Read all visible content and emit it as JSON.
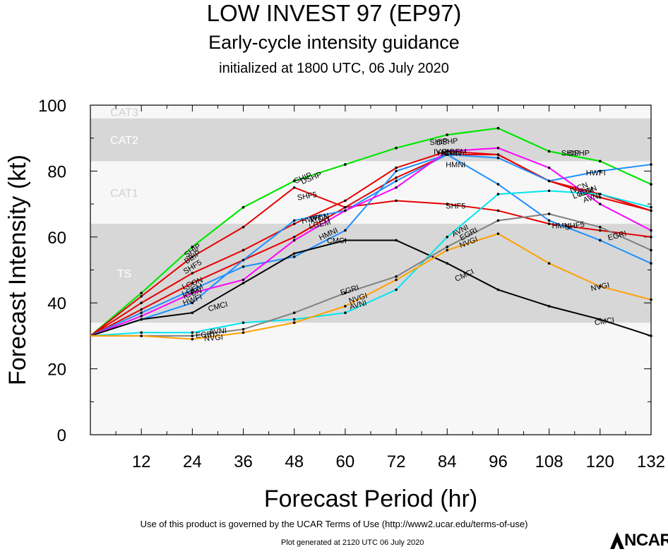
{
  "header": {
    "title": "LOW INVEST 97 (EP97)",
    "subtitle": "Early-cycle intensity guidance",
    "initialized": "initialized at 1800 UTC, 06 July 2020"
  },
  "footer": {
    "terms": "Use of this product is governed by the UCAR Terms of Use (http://www2.ucar.edu/terms-of-use)",
    "generated": "Plot generated at 2120 UTC   06 July 2020",
    "logo_text": "NCAR"
  },
  "chart_data": {
    "type": "line",
    "xlabel": "Forecast Period (hr)",
    "ylabel": "Forecast Intensity (kt)",
    "xlim": [
      0,
      132
    ],
    "ylim": [
      0,
      100
    ],
    "xticks": [
      12,
      24,
      36,
      48,
      60,
      72,
      84,
      96,
      108,
      120,
      132
    ],
    "yticks": [
      0,
      20,
      40,
      60,
      80,
      100
    ],
    "bands": [
      {
        "label": "TS",
        "from": 34,
        "to": 64,
        "color": "#d7d7d7"
      },
      {
        "label": "CAT1",
        "from": 64,
        "to": 83,
        "color": "#f7f7f7"
      },
      {
        "label": "CAT2",
        "from": 83,
        "to": 96,
        "color": "#d7d7d7"
      },
      {
        "label": "CAT3",
        "from": 96,
        "to": 100,
        "color": "#f7f7f7"
      }
    ],
    "below_band_color": "#f7f7f7",
    "series": [
      {
        "name": "SHIP",
        "color": "#00e600",
        "x": [
          0,
          12,
          24,
          36,
          48,
          60,
          72,
          84,
          96,
          108,
          120,
          132
        ],
        "y": [
          30,
          43,
          57,
          69,
          77,
          82,
          87,
          91,
          93,
          86,
          83,
          76
        ]
      },
      {
        "name": "DSHP",
        "color": "#00e600",
        "x": [
          0,
          12,
          24,
          36,
          48,
          60,
          72,
          84,
          96,
          108,
          120,
          132
        ],
        "y": [
          30,
          43,
          57,
          69,
          77,
          82,
          87,
          91,
          93,
          86,
          83,
          76
        ]
      },
      {
        "name": "SHF5",
        "color": "#e60000",
        "x": [
          0,
          12,
          24,
          36,
          48,
          60,
          72,
          84,
          96,
          108,
          120,
          132
        ],
        "y": [
          30,
          42,
          54,
          63,
          75,
          69,
          71,
          70,
          68,
          64,
          62,
          60
        ]
      },
      {
        "name": "LGEM",
        "color": "#e60000",
        "x": [
          0,
          12,
          24,
          36,
          48,
          60,
          72,
          84,
          96,
          108,
          120,
          132
        ],
        "y": [
          30,
          40,
          49,
          56,
          64,
          71,
          81,
          86,
          85,
          77,
          73,
          68
        ]
      },
      {
        "name": "IVCN",
        "color": "#e60000",
        "x": [
          0,
          12,
          24,
          36,
          48,
          60,
          72,
          84,
          96,
          108,
          120,
          132
        ],
        "y": [
          30,
          38,
          46,
          53,
          60,
          69,
          78,
          85,
          85,
          77,
          72,
          68
        ]
      },
      {
        "name": "HWFI",
        "color": "#1e90ff",
        "x": [
          0,
          12,
          24,
          36,
          48,
          60,
          72,
          84,
          96,
          108,
          120,
          132
        ],
        "y": [
          30,
          37,
          44,
          51,
          54,
          62,
          80,
          85,
          76,
          65,
          59,
          52
        ]
      },
      {
        "name": "HMNI",
        "color": "#1e90ff",
        "x": [
          0,
          12,
          24,
          36,
          48,
          60,
          72,
          84,
          96,
          108,
          120,
          132
        ],
        "y": [
          30,
          35,
          40,
          53,
          65,
          68,
          77,
          85,
          84,
          77,
          80,
          82
        ]
      },
      {
        "name": "ICON",
        "color": "#ff00ff",
        "x": [
          0,
          12,
          24,
          36,
          48,
          60,
          72,
          84,
          96,
          108,
          120,
          132
        ],
        "y": [
          30,
          36,
          43,
          47,
          59,
          68,
          75,
          86,
          87,
          81,
          70,
          62
        ]
      },
      {
        "name": "CMCI",
        "color": "#000000",
        "x": [
          0,
          12,
          24,
          36,
          48,
          60,
          72,
          84,
          96,
          108,
          120,
          132
        ],
        "y": [
          30,
          35,
          37,
          46,
          55,
          59,
          59,
          52,
          44,
          39,
          35,
          30
        ]
      },
      {
        "name": "AVNI",
        "color": "#00e5ee",
        "x": [
          0,
          12,
          24,
          36,
          48,
          60,
          72,
          84,
          96,
          108,
          120,
          132
        ],
        "y": [
          30,
          31,
          31,
          34,
          35,
          37,
          44,
          60,
          73,
          74,
          73,
          69
        ]
      },
      {
        "name": "EGRI",
        "color": "#808080",
        "x": [
          0,
          12,
          24,
          36,
          48,
          60,
          72,
          84,
          96,
          108,
          120,
          132
        ],
        "y": [
          30,
          30,
          30,
          32,
          37,
          43,
          48,
          57,
          65,
          67,
          63,
          56
        ]
      },
      {
        "name": "NVGI",
        "color": "#ffa000",
        "x": [
          0,
          12,
          24,
          36,
          48,
          60,
          72,
          84,
          96,
          108,
          120,
          132
        ],
        "y": [
          30,
          30,
          29,
          31,
          34,
          39,
          47,
          56,
          61,
          52,
          45,
          41
        ]
      }
    ],
    "annotations": [
      {
        "text": "BEIP",
        "x": 24,
        "y": 54,
        "angle": -35
      },
      {
        "text": "SHIP",
        "x": 24,
        "y": 56,
        "angle": -35
      },
      {
        "text": "SHF5",
        "x": 24,
        "y": 51,
        "angle": -32
      },
      {
        "text": "LCON",
        "x": 24,
        "y": 46,
        "angle": -22
      },
      {
        "text": "LGEM",
        "x": 24,
        "y": 44,
        "angle": -22
      },
      {
        "text": "ICON",
        "x": 24,
        "y": 43,
        "angle": -20
      },
      {
        "text": "HWFI",
        "x": 24,
        "y": 41,
        "angle": -20
      },
      {
        "text": "CMCI",
        "x": 30,
        "y": 39,
        "angle": -15
      },
      {
        "text": "AVNI",
        "x": 30,
        "y": 31.5,
        "angle": -5
      },
      {
        "text": "EGRI",
        "x": 27,
        "y": 30.5,
        "angle": -5
      },
      {
        "text": "NVGI",
        "x": 29,
        "y": 29.5,
        "angle": -5
      },
      {
        "text": "SHIP",
        "x": 50,
        "y": 78,
        "angle": -22
      },
      {
        "text": "DSHP",
        "x": 52,
        "y": 78,
        "angle": -22
      },
      {
        "text": "SHF5",
        "x": 51,
        "y": 72.5,
        "angle": -10
      },
      {
        "text": "IVCN",
        "x": 54,
        "y": 66,
        "angle": -12
      },
      {
        "text": "ICON",
        "x": 54,
        "y": 65.5,
        "angle": -12
      },
      {
        "text": "HWFI",
        "x": 52,
        "y": 65.5,
        "angle": -12
      },
      {
        "text": "LGEM",
        "x": 54,
        "y": 64,
        "angle": -12
      },
      {
        "text": "HMNI",
        "x": 56,
        "y": 61,
        "angle": -25
      },
      {
        "text": "CMCI",
        "x": 58,
        "y": 59,
        "angle": 0
      },
      {
        "text": "EGRI",
        "x": 61,
        "y": 44,
        "angle": -18
      },
      {
        "text": "NVGI",
        "x": 63,
        "y": 41.5,
        "angle": -18
      },
      {
        "text": "AVNI",
        "x": 63,
        "y": 39.5,
        "angle": -15
      },
      {
        "text": "SHIP",
        "x": 82,
        "y": 89,
        "angle": -5
      },
      {
        "text": "DSHP",
        "x": 84,
        "y": 89,
        "angle": -5
      },
      {
        "text": "LGEM",
        "x": 86,
        "y": 86,
        "angle": 0
      },
      {
        "text": "HWFI",
        "x": 84,
        "y": 85.5,
        "angle": 0
      },
      {
        "text": "ICON",
        "x": 85,
        "y": 85.5,
        "angle": 0
      },
      {
        "text": "IVCN",
        "x": 83,
        "y": 86,
        "angle": 0
      },
      {
        "text": "HMNI",
        "x": 86,
        "y": 82,
        "angle": 0
      },
      {
        "text": "SHF5",
        "x": 86,
        "y": 69.5,
        "angle": 0
      },
      {
        "text": "AVNI",
        "x": 87,
        "y": 62,
        "angle": -28
      },
      {
        "text": "EGRI",
        "x": 89,
        "y": 61,
        "angle": -28
      },
      {
        "text": "NVGI",
        "x": 89,
        "y": 58.5,
        "angle": -22
      },
      {
        "text": "CMCI",
        "x": 88,
        "y": 48.5,
        "angle": -25
      },
      {
        "text": "SHIP",
        "x": 113,
        "y": 85.5,
        "angle": 0
      },
      {
        "text": "DSHP",
        "x": 115,
        "y": 85.5,
        "angle": 0
      },
      {
        "text": "HWFI",
        "x": 119,
        "y": 79.5,
        "angle": 0
      },
      {
        "text": "IVCN",
        "x": 115,
        "y": 75,
        "angle": -22
      },
      {
        "text": "ICON",
        "x": 117,
        "y": 74,
        "angle": -22
      },
      {
        "text": "LGEM",
        "x": 116,
        "y": 73.5,
        "angle": -20
      },
      {
        "text": "AVNI",
        "x": 118,
        "y": 72,
        "angle": -18
      },
      {
        "text": "SHF5",
        "x": 114,
        "y": 63.5,
        "angle": -10
      },
      {
        "text": "EGRI",
        "x": 124,
        "y": 60.5,
        "angle": -15
      },
      {
        "text": "HMNI",
        "x": 111,
        "y": 63.5,
        "angle": 0
      },
      {
        "text": "NVGI",
        "x": 120,
        "y": 45,
        "angle": -12
      },
      {
        "text": "CMCI",
        "x": 121,
        "y": 34.5,
        "angle": -8
      }
    ]
  }
}
